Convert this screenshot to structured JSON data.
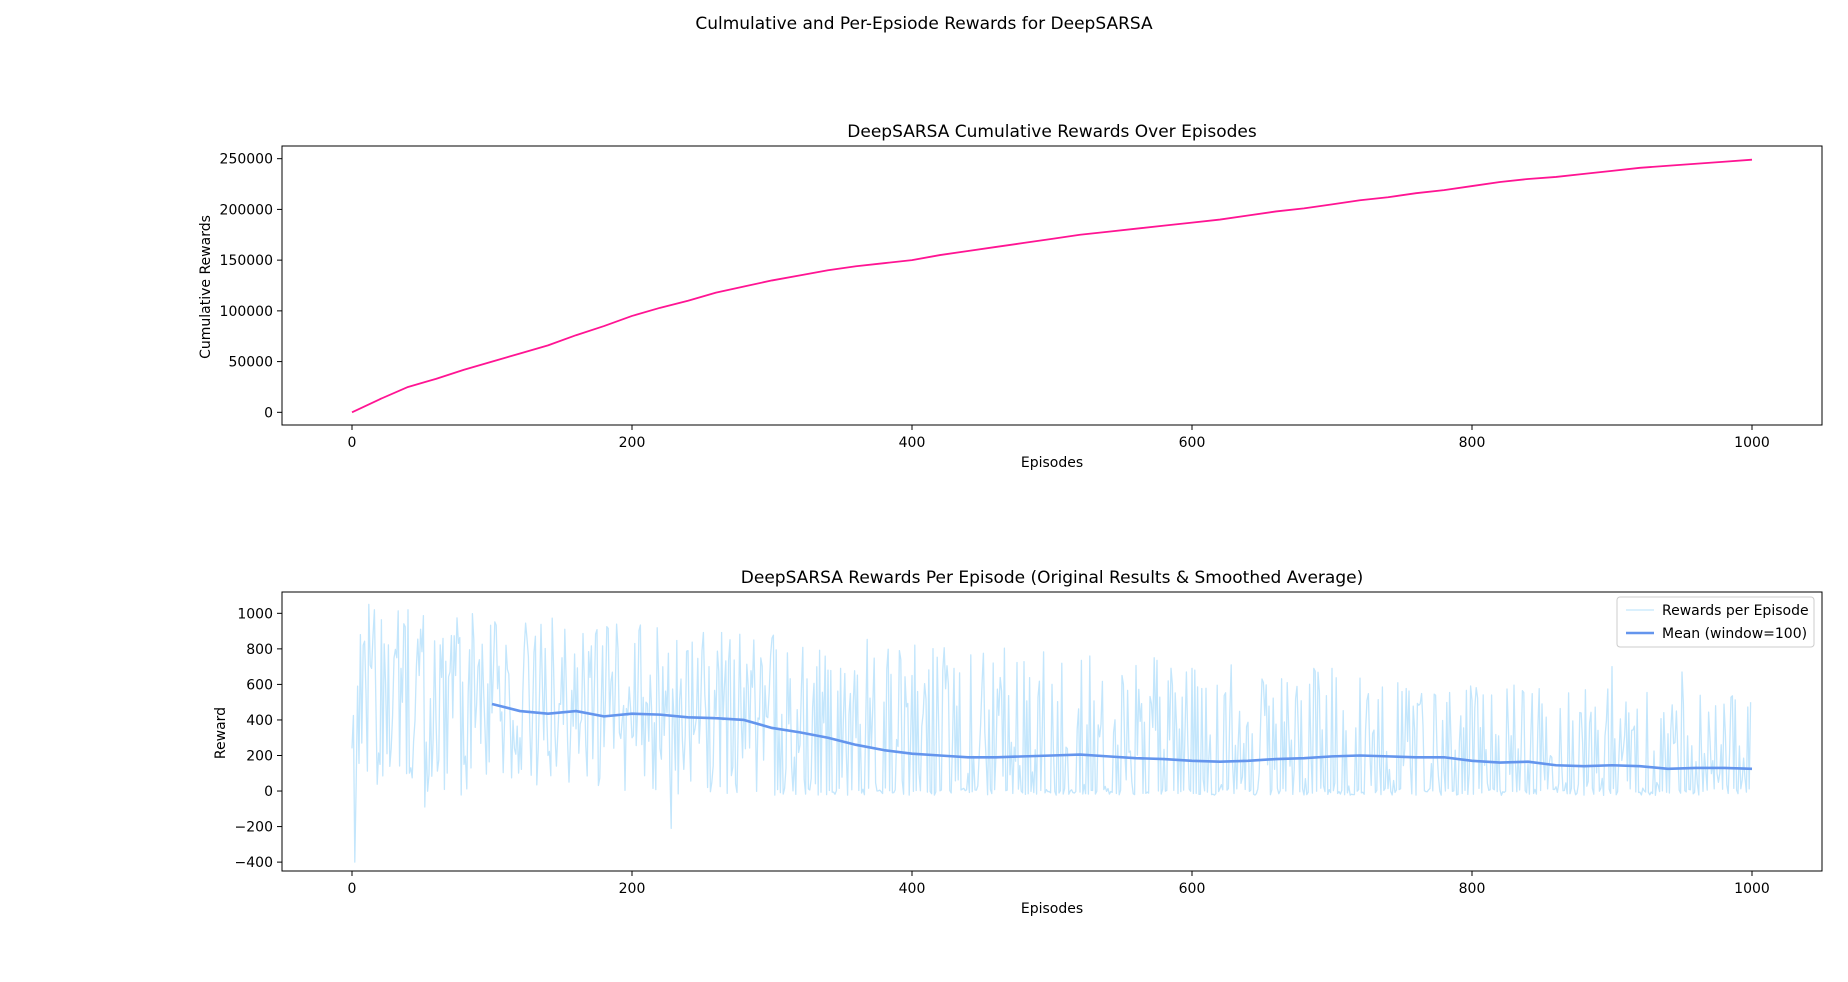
{
  "figure": {
    "suptitle": "Culmulative and Per-Epsiode Rewards for DeepSARSA"
  },
  "chart_data": [
    {
      "type": "line",
      "title": "DeepSARSA Cumulative Rewards Over Episodes",
      "xlabel": "Episodes",
      "ylabel": "Cumulative Rewards",
      "xlim": [
        -50,
        1050
      ],
      "ylim": [
        -12500,
        262500
      ],
      "xticks": [
        0,
        200,
        400,
        600,
        800,
        1000
      ],
      "yticks": [
        0,
        50000,
        100000,
        150000,
        200000,
        250000
      ],
      "grid": false,
      "legend": null,
      "series": [
        {
          "color": "#ff1493",
          "x": [
            0,
            20,
            40,
            60,
            80,
            100,
            120,
            140,
            160,
            180,
            200,
            220,
            240,
            260,
            280,
            300,
            320,
            340,
            360,
            380,
            400,
            420,
            440,
            460,
            480,
            500,
            520,
            540,
            560,
            580,
            600,
            620,
            640,
            660,
            680,
            700,
            720,
            740,
            760,
            780,
            800,
            820,
            840,
            860,
            880,
            900,
            920,
            940,
            960,
            980,
            1000
          ],
          "y": [
            0,
            13000,
            25000,
            33000,
            42000,
            50000,
            58000,
            66000,
            76000,
            85000,
            95000,
            103000,
            110000,
            118000,
            124000,
            130000,
            135000,
            140000,
            144000,
            147000,
            150000,
            155000,
            159000,
            163000,
            167000,
            171000,
            175000,
            178000,
            181000,
            184000,
            187000,
            190000,
            194000,
            198000,
            201000,
            205000,
            209000,
            212000,
            216000,
            219000,
            223000,
            227000,
            230000,
            232000,
            235000,
            238000,
            241000,
            243000,
            245000,
            247000,
            249000
          ]
        }
      ]
    },
    {
      "type": "line",
      "title": "DeepSARSA Rewards Per Episode (Original Results & Smoothed Average)",
      "xlabel": "Episodes",
      "ylabel": "Reward",
      "xlim": [
        -50,
        1050
      ],
      "ylim": [
        -450,
        1120
      ],
      "xticks": [
        0,
        200,
        400,
        600,
        800,
        1000
      ],
      "yticks": [
        -400,
        -200,
        0,
        200,
        400,
        600,
        800,
        1000
      ],
      "grid": false,
      "legend": "top-right",
      "raw_range": {
        "episodes": [
          0,
          999
        ],
        "min": -400,
        "max": 1050
      },
      "series": [
        {
          "name": "Rewards per Episode",
          "color": "#87cefa",
          "kind": "raw",
          "x": [
            0,
            2,
            4,
            6,
            8,
            10,
            12,
            14,
            16,
            20,
            24,
            28,
            32,
            36,
            40,
            44,
            48,
            52,
            56,
            60,
            70,
            80,
            90,
            100,
            110,
            120,
            130,
            140,
            150,
            160,
            170,
            180,
            190,
            200,
            210,
            220,
            228,
            235,
            245,
            255,
            265,
            280,
            300,
            320,
            340,
            360,
            380,
            400,
            450,
            500,
            550,
            600,
            650,
            700,
            750,
            800,
            850,
            900,
            950,
            999
          ],
          "y": [
            240,
            -400,
            590,
            880,
            820,
            550,
            1050,
            690,
            1020,
            150,
            600,
            240,
            750,
            500,
            1020,
            280,
            650,
            -90,
            520,
            400,
            670,
            150,
            700,
            440,
            820,
            300,
            780,
            200,
            750,
            350,
            640,
            250,
            800,
            300,
            500,
            240,
            -210,
            630,
            350,
            700,
            400,
            580,
            860,
            260,
            680,
            300,
            500,
            650,
            600,
            600,
            650,
            690,
            630,
            690,
            560,
            510,
            490,
            700,
            670,
            500
          ]
        },
        {
          "name": "Mean (window=100)",
          "color": "#6495ed",
          "kind": "mean",
          "x": [
            100,
            120,
            140,
            160,
            180,
            200,
            220,
            240,
            260,
            280,
            300,
            320,
            340,
            360,
            380,
            400,
            420,
            440,
            460,
            480,
            500,
            520,
            540,
            560,
            580,
            600,
            620,
            640,
            660,
            680,
            700,
            720,
            740,
            760,
            780,
            800,
            820,
            840,
            860,
            880,
            900,
            920,
            940,
            960,
            980,
            1000
          ],
          "y": [
            490,
            450,
            435,
            450,
            420,
            435,
            430,
            415,
            410,
            400,
            355,
            330,
            300,
            260,
            230,
            210,
            200,
            190,
            190,
            195,
            200,
            205,
            195,
            185,
            180,
            170,
            165,
            170,
            180,
            185,
            195,
            200,
            195,
            190,
            190,
            170,
            160,
            165,
            145,
            140,
            145,
            140,
            125,
            130,
            130,
            125
          ]
        }
      ]
    }
  ]
}
